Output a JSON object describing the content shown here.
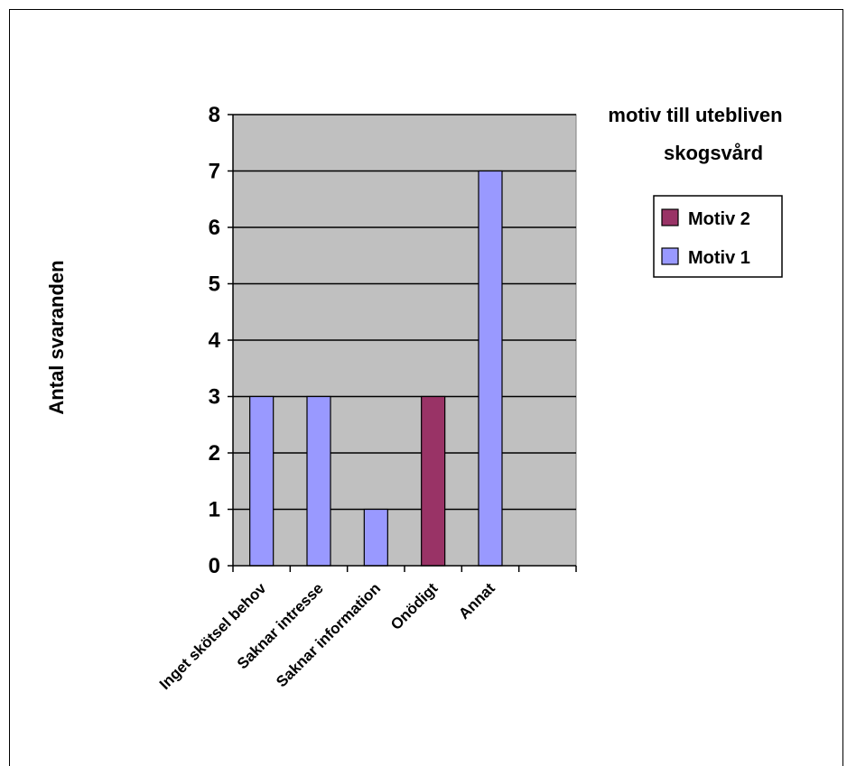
{
  "chart_data": {
    "type": "bar",
    "title_lines": [
      "motiv till utebliven",
      "skogsvård"
    ],
    "xlabel": "",
    "ylabel": "Antal svaranden",
    "categories": [
      "Inget skötsel behov",
      "Saknar intresse",
      "Saknar information",
      "Onödigt",
      "Annat",
      ""
    ],
    "series": [
      {
        "name": "Motiv 1",
        "color": "#9999FF",
        "values": [
          3,
          3,
          1,
          null,
          7,
          null
        ]
      },
      {
        "name": "Motiv 2",
        "color": "#993366",
        "values": [
          null,
          null,
          null,
          3,
          null,
          null
        ]
      }
    ],
    "legend_order": [
      "Motiv 2",
      "Motiv 1"
    ],
    "ylim": [
      0,
      8
    ],
    "yticks": [
      0,
      1,
      2,
      3,
      4,
      5,
      6,
      7,
      8
    ],
    "grid": true,
    "plot_background": "#C0C0C0",
    "legend_position": "right"
  }
}
